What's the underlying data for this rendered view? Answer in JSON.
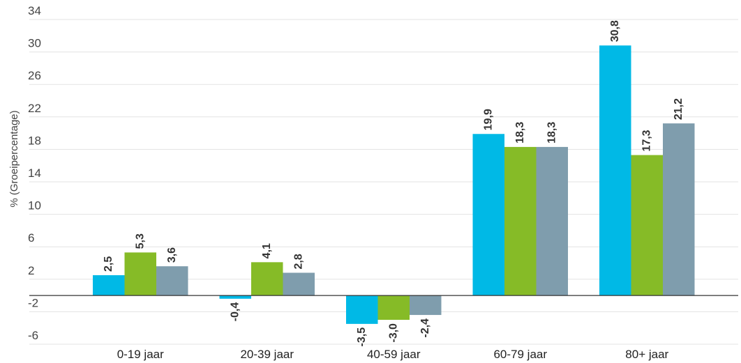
{
  "chart_data": {
    "type": "bar",
    "ylabel": "% (Groeipercentage)",
    "yticks": [
      34,
      30,
      26,
      22,
      18,
      14,
      10,
      6,
      2,
      -2,
      -6
    ],
    "ylim": [
      -6,
      34
    ],
    "grid": true,
    "categories": [
      "0-19 jaar",
      "20-39 jaar",
      "40-59 jaar",
      "60-79 jaar",
      "80+ jaar"
    ],
    "series": [
      {
        "values": [
          2.5,
          -0.4,
          -3.5,
          19.9,
          30.8
        ],
        "labels": [
          "2,5",
          "-0,4",
          "-3,5",
          "19,9",
          "30,8"
        ],
        "color": "#00b9e6"
      },
      {
        "values": [
          5.3,
          4.1,
          -3.0,
          18.3,
          17.3
        ],
        "labels": [
          "5,3",
          "4,1",
          "-3,0",
          "18,3",
          "17,3"
        ],
        "color": "#86bb27"
      },
      {
        "values": [
          3.6,
          2.8,
          -2.4,
          18.3,
          21.2
        ],
        "labels": [
          "3,6",
          "2,8",
          "-2,4",
          "18,3",
          "21,2"
        ],
        "color": "#7f9dad"
      }
    ]
  }
}
